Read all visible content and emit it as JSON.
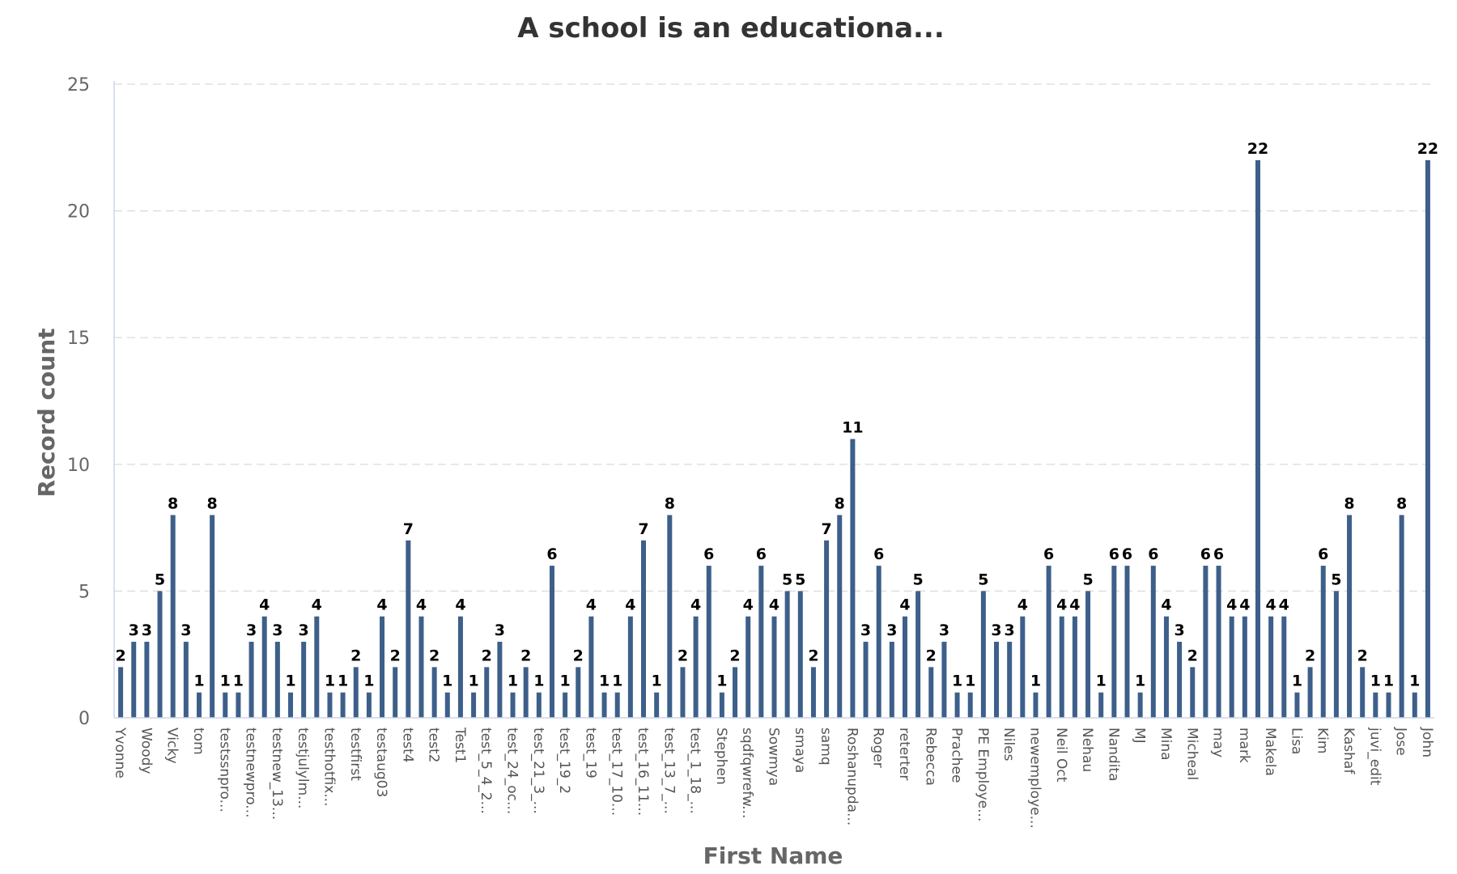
{
  "chart_data": {
    "type": "bar",
    "title": "A school is an educationa...",
    "xlabel": "First Name",
    "ylabel": "Record count",
    "ylim": [
      0,
      25
    ],
    "yticks": [
      0,
      5,
      10,
      15,
      20,
      25
    ],
    "grid": true,
    "legend": "none",
    "bar_color": "#3d5f8a",
    "categories": [
      "Yvonne",
      "",
      "Woody",
      "",
      "Vicky",
      "",
      "tom",
      "",
      "testssnpro...",
      "",
      "testnewpro...",
      "",
      "testnew_13...",
      "",
      "testjulylm...",
      "",
      "testhotfix...",
      "",
      "testfirst",
      "",
      "testaug03",
      "",
      "test4",
      "",
      "test2",
      "",
      "Test1",
      "",
      "test_5_4_2...",
      "",
      "test_24_oc...",
      "",
      "test_21_3_...",
      "",
      "test_19_2",
      "",
      "test_19",
      "",
      "test_17_10...",
      "",
      "test_16_11...",
      "",
      "test_13_7_...",
      "",
      "test_1_18_...",
      "",
      "Stephen",
      "",
      "sqdfqwrefw...",
      "",
      "Sowmya",
      "",
      "smaya",
      "",
      "samq",
      "",
      "Roshanupda...",
      "",
      "Roger",
      "",
      "reterter",
      "",
      "Rebecca",
      "",
      "Prachee",
      "",
      "PE Employe...",
      "",
      "Niles",
      "",
      "newemploye...",
      "",
      "Neil Oct",
      "",
      "Nehau",
      "",
      "Nandita",
      "",
      "MJ",
      "",
      "Mina",
      "",
      "Micheal",
      "",
      "may",
      "",
      "mark",
      "",
      "Makela",
      "",
      "Lisa",
      "",
      "Kim",
      "",
      "Kashaf",
      "",
      "juvi_edit",
      "",
      "Jose",
      "",
      "John"
    ],
    "values": [
      2,
      3,
      3,
      5,
      8,
      3,
      1,
      8,
      1,
      1,
      3,
      4,
      3,
      1,
      3,
      4,
      1,
      1,
      2,
      1,
      4,
      2,
      7,
      4,
      2,
      1,
      4,
      1,
      2,
      3,
      1,
      2,
      1,
      6,
      1,
      2,
      4,
      1,
      1,
      4,
      7,
      1,
      8,
      2,
      4,
      6,
      1,
      2,
      4,
      6,
      4,
      5,
      5,
      2,
      7,
      8,
      11,
      3,
      6,
      3,
      4,
      5,
      2,
      3,
      1,
      1,
      5,
      3,
      3,
      4,
      1,
      6,
      4,
      4,
      5,
      1,
      6,
      6,
      1,
      6,
      4,
      3,
      2,
      6,
      6,
      4,
      4,
      22,
      4,
      4,
      1,
      2,
      6,
      5,
      8,
      2,
      1,
      1,
      8,
      1,
      22
    ]
  }
}
